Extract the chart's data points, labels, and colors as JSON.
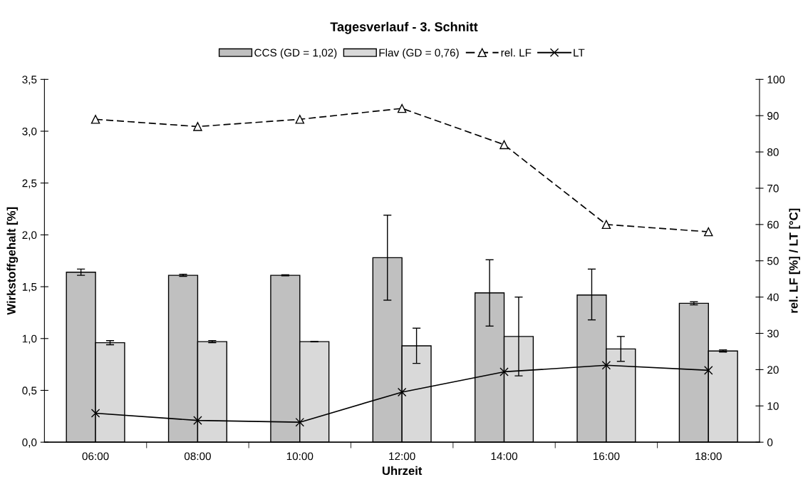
{
  "chart_data": {
    "type": "bar",
    "title": "Tagesverlauf - 3. Schnitt",
    "xlabel": "Uhrzeit",
    "ylabel": "Wirkstoffgehalt [%]",
    "y2label": "rel. LF [%] / LT [°C]",
    "categories": [
      "06:00",
      "08:00",
      "10:00",
      "12:00",
      "14:00",
      "16:00",
      "18:00"
    ],
    "series": [
      {
        "name": "CCS (GD = 1,02)",
        "color": "#c0c0c0",
        "values": [
          1.64,
          1.61,
          1.61,
          1.78,
          1.44,
          1.42,
          1.34
        ],
        "errors": [
          0.03,
          0.01,
          0.005,
          [
            1.37,
            2.19
          ],
          [
            1.12,
            1.76
          ],
          [
            1.18,
            1.67
          ],
          0.015
        ]
      },
      {
        "name": "Flav (GD = 0,76)",
        "color": "#d9d9d9",
        "values": [
          0.96,
          0.97,
          0.97,
          0.93,
          1.02,
          0.9,
          0.88
        ],
        "errors": [
          0.02,
          0.01,
          0.002,
          [
            0.76,
            1.1
          ],
          [
            0.64,
            1.4
          ],
          [
            0.78,
            1.02
          ],
          0.01
        ]
      },
      {
        "name": "rel. LF",
        "type": "line",
        "axis": "y2",
        "color": "#000000",
        "marker": "triangle",
        "line_style": "dashed",
        "values": [
          89,
          87,
          89,
          92,
          82,
          60,
          58
        ]
      },
      {
        "name": "LT",
        "type": "line",
        "axis": "y2",
        "color": "#000000",
        "marker": "cross",
        "line_style": "solid",
        "values": [
          8,
          6,
          5.5,
          13.8,
          19.4,
          21.2,
          19.8
        ]
      }
    ],
    "ylim": [
      0,
      3.5
    ],
    "yticks": [
      {
        "value": 0,
        "label": "0,0"
      },
      {
        "value": 0.5,
        "label": "0,5"
      },
      {
        "value": 1,
        "label": "1,0"
      },
      {
        "value": 1.5,
        "label": "1,5"
      },
      {
        "value": 2,
        "label": "2,0"
      },
      {
        "value": 2.5,
        "label": "2,5"
      },
      {
        "value": 3,
        "label": "3,0"
      },
      {
        "value": 3.5,
        "label": "3,5"
      }
    ],
    "y2lim": [
      0,
      100
    ],
    "y2ticks": [
      0,
      10,
      20,
      30,
      40,
      50,
      60,
      70,
      80,
      90,
      100
    ],
    "grid": false,
    "legend": "top"
  }
}
